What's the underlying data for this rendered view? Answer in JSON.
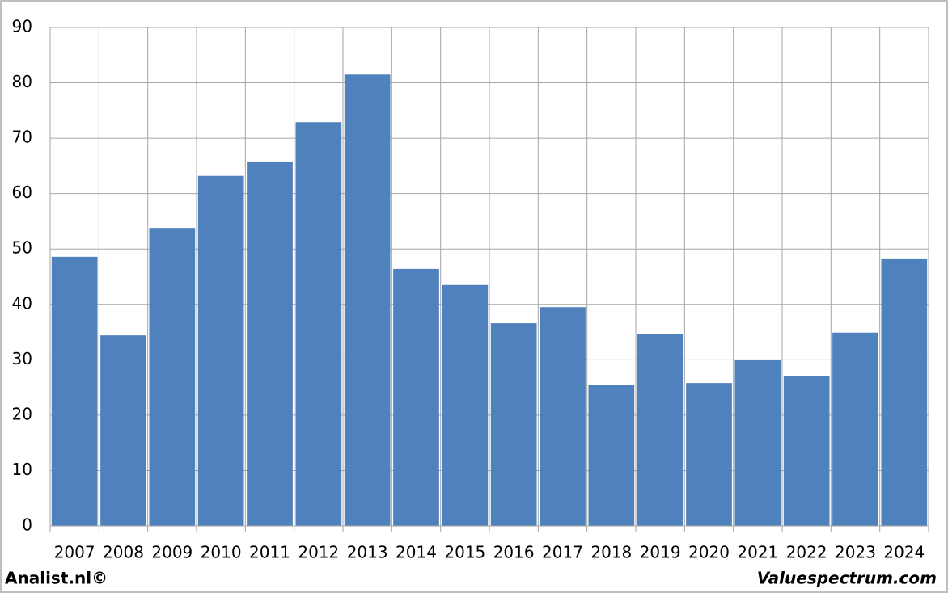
{
  "chart_data": {
    "type": "bar",
    "categories": [
      "2007",
      "2008",
      "2009",
      "2010",
      "2011",
      "2012",
      "2013",
      "2014",
      "2015",
      "2016",
      "2017",
      "2018",
      "2019",
      "2020",
      "2021",
      "2022",
      "2023",
      "2024"
    ],
    "values": [
      48.6,
      34.4,
      53.8,
      63.2,
      65.8,
      72.9,
      81.5,
      46.4,
      43.5,
      36.6,
      39.5,
      25.4,
      34.6,
      25.8,
      29.9,
      27.0,
      34.9,
      48.3
    ],
    "color": "#4f81bd",
    "ylim": [
      0,
      90
    ],
    "yticks": [
      0,
      10,
      20,
      30,
      40,
      50,
      60,
      70,
      80,
      90
    ],
    "grid": true,
    "source_left": "Analist.nl©",
    "source_right": "Valuespectrum.com"
  }
}
